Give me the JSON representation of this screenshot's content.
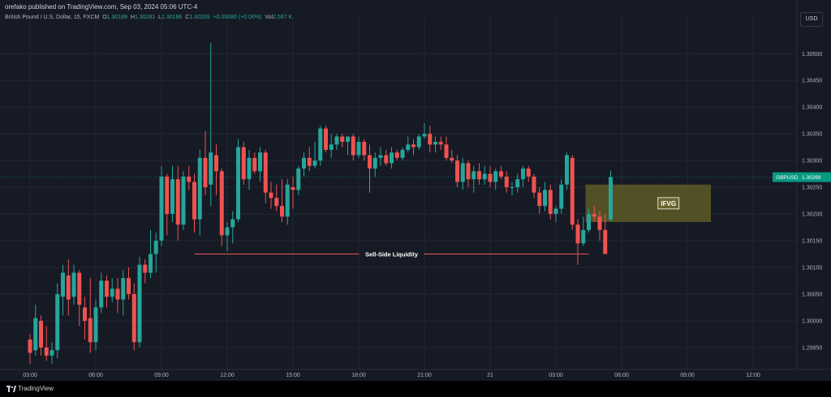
{
  "header": {
    "published_text": "orefako published on TradingView.com, Sep 03, 2024 05:06 UTC-4",
    "symbol_desc": "British Pound / U.S. Dollar, 15, FXCM",
    "ohlc": {
      "o_label": "O",
      "o": "1.30189",
      "h_label": "H",
      "h": "1.30281",
      "l_label": "L",
      "l": "1.30186",
      "c_label": "C",
      "c": "1.30269",
      "change": "+0.00080 (+0.06%)",
      "vol_label": "Vol",
      "vol": "2.567 K"
    },
    "currency_button": "USD"
  },
  "footer": {
    "brand": "TradingView"
  },
  "colors": {
    "up": "#26a69a",
    "down": "#ef5350",
    "background": "#161a25",
    "grid": "#232734",
    "text": "#b2b5be",
    "price_tag": "#089981",
    "liquidity_line": "#ef5350",
    "fvg_fill": "#5e5a26"
  },
  "chart_data": {
    "type": "candlestick",
    "symbol": "GBPUSD",
    "last_price": 1.30269,
    "last_price_label": "1.30269",
    "y_ticks": [
      "1.30500",
      "1.30450",
      "1.30400",
      "1.30350",
      "1.30300",
      "1.30250",
      "1.30200",
      "1.30150",
      "1.30100",
      "1.30050",
      "1.30000",
      "1.29950"
    ],
    "ylim": [
      1.29915,
      1.30555
    ],
    "x_tick_labels": [
      "03:00",
      "06:00",
      "09:00",
      "12:00",
      "15:00",
      "18:00",
      "21:00",
      "21",
      "03:00",
      "06:00",
      "09:00",
      "12:00"
    ],
    "x_tick_bar_index": [
      0,
      12,
      24,
      36,
      48,
      60,
      72,
      84,
      96,
      108,
      120,
      132
    ],
    "bars_total_span": 134,
    "candles": [
      {
        "o": 1.29965,
        "h": 1.29975,
        "l": 1.2992,
        "c": 1.2994
      },
      {
        "o": 1.29945,
        "h": 1.3003,
        "l": 1.29935,
        "c": 1.30005
      },
      {
        "o": 1.3,
        "h": 1.3001,
        "l": 1.29935,
        "c": 1.2995
      },
      {
        "o": 1.2995,
        "h": 1.2999,
        "l": 1.29925,
        "c": 1.29935
      },
      {
        "o": 1.29935,
        "h": 1.2996,
        "l": 1.2992,
        "c": 1.29945
      },
      {
        "o": 1.29945,
        "h": 1.3007,
        "l": 1.2993,
        "c": 1.3005
      },
      {
        "o": 1.30045,
        "h": 1.30105,
        "l": 1.3001,
        "c": 1.3009
      },
      {
        "o": 1.30085,
        "h": 1.30115,
        "l": 1.3001,
        "c": 1.3004
      },
      {
        "o": 1.30045,
        "h": 1.30105,
        "l": 1.3003,
        "c": 1.3009
      },
      {
        "o": 1.3009,
        "h": 1.30095,
        "l": 1.2999,
        "c": 1.3003
      },
      {
        "o": 1.30025,
        "h": 1.30045,
        "l": 1.29965,
        "c": 1.3
      },
      {
        "o": 1.30005,
        "h": 1.3008,
        "l": 1.2994,
        "c": 1.2996
      },
      {
        "o": 1.2996,
        "h": 1.3004,
        "l": 1.29945,
        "c": 1.30025
      },
      {
        "o": 1.30025,
        "h": 1.3009,
        "l": 1.30015,
        "c": 1.30075
      },
      {
        "o": 1.30075,
        "h": 1.30085,
        "l": 1.30025,
        "c": 1.30045
      },
      {
        "o": 1.30045,
        "h": 1.3008,
        "l": 1.30035,
        "c": 1.3006
      },
      {
        "o": 1.3006,
        "h": 1.3008,
        "l": 1.30015,
        "c": 1.3004
      },
      {
        "o": 1.3004,
        "h": 1.30095,
        "l": 1.3001,
        "c": 1.3008
      },
      {
        "o": 1.3008,
        "h": 1.301,
        "l": 1.3004,
        "c": 1.3005
      },
      {
        "o": 1.3005,
        "h": 1.3007,
        "l": 1.29945,
        "c": 1.2996
      },
      {
        "o": 1.2996,
        "h": 1.3012,
        "l": 1.2995,
        "c": 1.30105
      },
      {
        "o": 1.30105,
        "h": 1.30115,
        "l": 1.3007,
        "c": 1.3009
      },
      {
        "o": 1.3009,
        "h": 1.3017,
        "l": 1.3008,
        "c": 1.30125
      },
      {
        "o": 1.30125,
        "h": 1.30165,
        "l": 1.3009,
        "c": 1.3015
      },
      {
        "o": 1.3015,
        "h": 1.3029,
        "l": 1.3014,
        "c": 1.3027
      },
      {
        "o": 1.3027,
        "h": 1.30275,
        "l": 1.3016,
        "c": 1.302
      },
      {
        "o": 1.302,
        "h": 1.3029,
        "l": 1.30185,
        "c": 1.30265
      },
      {
        "o": 1.30265,
        "h": 1.3029,
        "l": 1.3015,
        "c": 1.3018
      },
      {
        "o": 1.3018,
        "h": 1.3028,
        "l": 1.3017,
        "c": 1.3027
      },
      {
        "o": 1.3027,
        "h": 1.3029,
        "l": 1.30245,
        "c": 1.3026
      },
      {
        "o": 1.3026,
        "h": 1.30275,
        "l": 1.30165,
        "c": 1.3019
      },
      {
        "o": 1.3019,
        "h": 1.3032,
        "l": 1.3016,
        "c": 1.30305
      },
      {
        "o": 1.30305,
        "h": 1.30355,
        "l": 1.30235,
        "c": 1.3025
      },
      {
        "o": 1.30255,
        "h": 1.3052,
        "l": 1.30215,
        "c": 1.30315
      },
      {
        "o": 1.3031,
        "h": 1.3033,
        "l": 1.30235,
        "c": 1.3028
      },
      {
        "o": 1.3028,
        "h": 1.30285,
        "l": 1.3014,
        "c": 1.3016
      },
      {
        "o": 1.3016,
        "h": 1.30185,
        "l": 1.3013,
        "c": 1.30175
      },
      {
        "o": 1.30175,
        "h": 1.30205,
        "l": 1.30145,
        "c": 1.3019
      },
      {
        "o": 1.3019,
        "h": 1.3034,
        "l": 1.30185,
        "c": 1.30325
      },
      {
        "o": 1.30325,
        "h": 1.30335,
        "l": 1.30255,
        "c": 1.30265
      },
      {
        "o": 1.30265,
        "h": 1.3032,
        "l": 1.30245,
        "c": 1.30305
      },
      {
        "o": 1.30305,
        "h": 1.30315,
        "l": 1.30275,
        "c": 1.3028
      },
      {
        "o": 1.3028,
        "h": 1.30325,
        "l": 1.3026,
        "c": 1.30315
      },
      {
        "o": 1.30315,
        "h": 1.3032,
        "l": 1.3022,
        "c": 1.3024
      },
      {
        "o": 1.3024,
        "h": 1.3026,
        "l": 1.3021,
        "c": 1.3023
      },
      {
        "o": 1.3023,
        "h": 1.30255,
        "l": 1.30205,
        "c": 1.30215
      },
      {
        "o": 1.30215,
        "h": 1.30265,
        "l": 1.30185,
        "c": 1.30195
      },
      {
        "o": 1.30195,
        "h": 1.30265,
        "l": 1.3018,
        "c": 1.30255
      },
      {
        "o": 1.3025,
        "h": 1.3027,
        "l": 1.3021,
        "c": 1.30245
      },
      {
        "o": 1.30245,
        "h": 1.3029,
        "l": 1.30235,
        "c": 1.30285
      },
      {
        "o": 1.30285,
        "h": 1.30315,
        "l": 1.3027,
        "c": 1.30305
      },
      {
        "o": 1.30305,
        "h": 1.30325,
        "l": 1.3028,
        "c": 1.3029
      },
      {
        "o": 1.3029,
        "h": 1.30335,
        "l": 1.30285,
        "c": 1.303
      },
      {
        "o": 1.303,
        "h": 1.30365,
        "l": 1.3029,
        "c": 1.3036
      },
      {
        "o": 1.3036,
        "h": 1.30365,
        "l": 1.30315,
        "c": 1.3032
      },
      {
        "o": 1.3032,
        "h": 1.3035,
        "l": 1.30305,
        "c": 1.3033
      },
      {
        "o": 1.3033,
        "h": 1.3035,
        "l": 1.3032,
        "c": 1.30345
      },
      {
        "o": 1.30345,
        "h": 1.3035,
        "l": 1.30325,
        "c": 1.30335
      },
      {
        "o": 1.30335,
        "h": 1.30345,
        "l": 1.3031,
        "c": 1.30345
      },
      {
        "o": 1.30345,
        "h": 1.3035,
        "l": 1.303,
        "c": 1.3031
      },
      {
        "o": 1.3031,
        "h": 1.30345,
        "l": 1.30305,
        "c": 1.30335
      },
      {
        "o": 1.30335,
        "h": 1.3034,
        "l": 1.303,
        "c": 1.3031
      },
      {
        "o": 1.3031,
        "h": 1.3033,
        "l": 1.3024,
        "c": 1.30285
      },
      {
        "o": 1.30285,
        "h": 1.30315,
        "l": 1.3027,
        "c": 1.30305
      },
      {
        "o": 1.30305,
        "h": 1.30325,
        "l": 1.3029,
        "c": 1.3031
      },
      {
        "o": 1.3031,
        "h": 1.3032,
        "l": 1.3029,
        "c": 1.30295
      },
      {
        "o": 1.30295,
        "h": 1.30325,
        "l": 1.30285,
        "c": 1.30315
      },
      {
        "o": 1.30315,
        "h": 1.3032,
        "l": 1.303,
        "c": 1.30305
      },
      {
        "o": 1.30305,
        "h": 1.30325,
        "l": 1.303,
        "c": 1.3032
      },
      {
        "o": 1.3032,
        "h": 1.30345,
        "l": 1.30315,
        "c": 1.3033
      },
      {
        "o": 1.3033,
        "h": 1.3034,
        "l": 1.3031,
        "c": 1.30325
      },
      {
        "o": 1.30325,
        "h": 1.3035,
        "l": 1.3032,
        "c": 1.30345
      },
      {
        "o": 1.30345,
        "h": 1.3037,
        "l": 1.3034,
        "c": 1.3035
      },
      {
        "o": 1.3035,
        "h": 1.30365,
        "l": 1.30315,
        "c": 1.3033
      },
      {
        "o": 1.3033,
        "h": 1.30345,
        "l": 1.30315,
        "c": 1.30335
      },
      {
        "o": 1.30335,
        "h": 1.30345,
        "l": 1.3032,
        "c": 1.3033
      },
      {
        "o": 1.3033,
        "h": 1.30345,
        "l": 1.303,
        "c": 1.30305
      },
      {
        "o": 1.30305,
        "h": 1.3032,
        "l": 1.30295,
        "c": 1.303
      },
      {
        "o": 1.303,
        "h": 1.3031,
        "l": 1.3025,
        "c": 1.3026
      },
      {
        "o": 1.3026,
        "h": 1.30305,
        "l": 1.30245,
        "c": 1.30295
      },
      {
        "o": 1.30295,
        "h": 1.303,
        "l": 1.3025,
        "c": 1.30265
      },
      {
        "o": 1.30265,
        "h": 1.3029,
        "l": 1.3024,
        "c": 1.3028
      },
      {
        "o": 1.3028,
        "h": 1.30295,
        "l": 1.30255,
        "c": 1.30265
      },
      {
        "o": 1.30265,
        "h": 1.3029,
        "l": 1.30255,
        "c": 1.30275
      },
      {
        "o": 1.30275,
        "h": 1.3029,
        "l": 1.3025,
        "c": 1.3026
      },
      {
        "o": 1.3026,
        "h": 1.30285,
        "l": 1.30245,
        "c": 1.3028
      },
      {
        "o": 1.3028,
        "h": 1.3029,
        "l": 1.30265,
        "c": 1.3027
      },
      {
        "o": 1.3027,
        "h": 1.3028,
        "l": 1.3024,
        "c": 1.3025
      },
      {
        "o": 1.3025,
        "h": 1.3026,
        "l": 1.30235,
        "c": 1.3025
      },
      {
        "o": 1.3025,
        "h": 1.30275,
        "l": 1.3024,
        "c": 1.30265
      },
      {
        "o": 1.30265,
        "h": 1.3029,
        "l": 1.3025,
        "c": 1.30285
      },
      {
        "o": 1.30285,
        "h": 1.3029,
        "l": 1.3026,
        "c": 1.3027
      },
      {
        "o": 1.3027,
        "h": 1.30275,
        "l": 1.3023,
        "c": 1.3024
      },
      {
        "o": 1.3024,
        "h": 1.3025,
        "l": 1.302,
        "c": 1.30215
      },
      {
        "o": 1.30215,
        "h": 1.3026,
        "l": 1.30205,
        "c": 1.30245
      },
      {
        "o": 1.30245,
        "h": 1.30255,
        "l": 1.3019,
        "c": 1.302
      },
      {
        "o": 1.302,
        "h": 1.30215,
        "l": 1.30185,
        "c": 1.3021
      },
      {
        "o": 1.3021,
        "h": 1.30265,
        "l": 1.302,
        "c": 1.30255
      },
      {
        "o": 1.30255,
        "h": 1.30315,
        "l": 1.30245,
        "c": 1.3031
      },
      {
        "o": 1.30305,
        "h": 1.3031,
        "l": 1.3017,
        "c": 1.3018
      },
      {
        "o": 1.3018,
        "h": 1.3019,
        "l": 1.30105,
        "c": 1.30145
      },
      {
        "o": 1.30145,
        "h": 1.30195,
        "l": 1.3014,
        "c": 1.3017
      },
      {
        "o": 1.3017,
        "h": 1.3021,
        "l": 1.30165,
        "c": 1.302
      },
      {
        "o": 1.302,
        "h": 1.30215,
        "l": 1.30185,
        "c": 1.30195
      },
      {
        "o": 1.30195,
        "h": 1.30205,
        "l": 1.3015,
        "c": 1.3017
      },
      {
        "o": 1.3017,
        "h": 1.302,
        "l": 1.30125,
        "c": 1.30125
      },
      {
        "o": 1.3019,
        "h": 1.30281,
        "l": 1.30186,
        "c": 1.30269
      }
    ],
    "annotations": [
      {
        "type": "horizontal_line",
        "label": "Sell-Side Liquidity",
        "price": 1.30125,
        "from_bar": 30,
        "to_bar": 102
      },
      {
        "type": "rectangle",
        "label": "IFVG",
        "price_top": 1.30255,
        "price_bottom": 1.30185,
        "from_bar": 102,
        "to_bar": 124
      }
    ]
  }
}
